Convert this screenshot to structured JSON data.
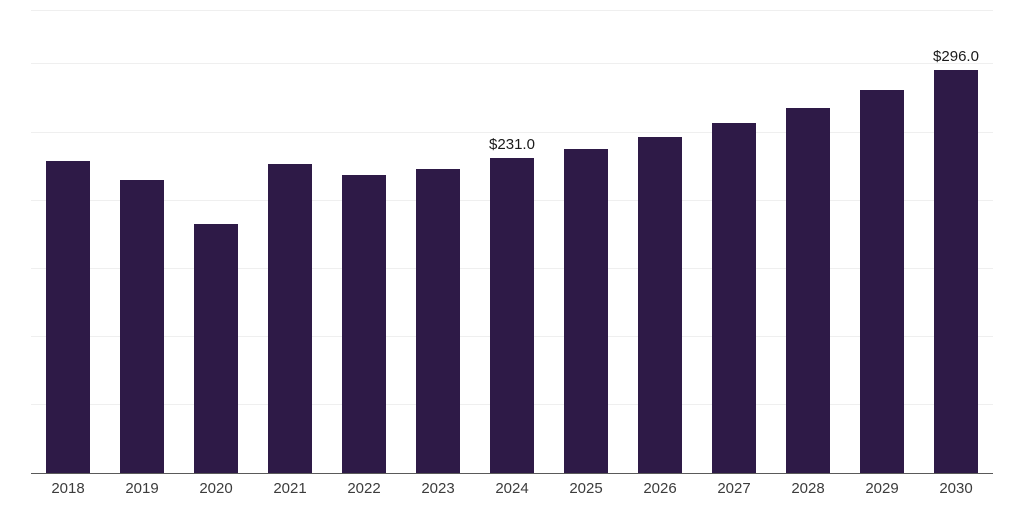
{
  "chart_data": {
    "type": "bar",
    "title": "",
    "xlabel": "",
    "ylabel": "",
    "categories": [
      "2018",
      "2019",
      "2020",
      "2021",
      "2022",
      "2023",
      "2024",
      "2025",
      "2026",
      "2027",
      "2028",
      "2029",
      "2030"
    ],
    "values": [
      229,
      215,
      183,
      227,
      219,
      223,
      231,
      238,
      247,
      257,
      268,
      281,
      296
    ],
    "data_labels": {
      "2024": "$231.0",
      "2030": "$296.0"
    },
    "ylim": [
      0,
      340
    ],
    "grid": "horizontal-faint",
    "grid_step": 50,
    "legend": "none",
    "colors": {
      "bar": "#2e1a47",
      "gridline": "#efefef",
      "axis_line": "#5a5a5a",
      "tick_text": "#3c3c3c",
      "label_text": "#1a1a1a",
      "background": "#ffffff"
    }
  }
}
